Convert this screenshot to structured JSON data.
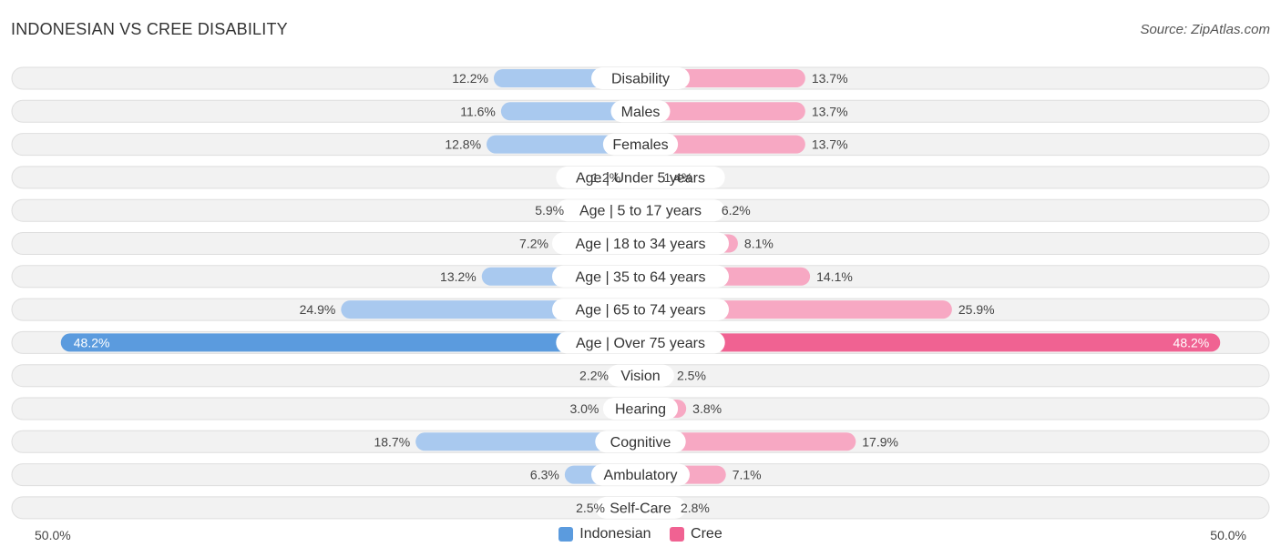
{
  "title": "INDONESIAN VS CREE DISABILITY",
  "source": "Source: ZipAtlas.com",
  "axis": {
    "left_label": "50.0%",
    "right_label": "50.0%"
  },
  "colors": {
    "indonesian": "#5b9bde",
    "indonesian_light": "#a9c9ef",
    "cree": "#f06292",
    "cree_light": "#f7a8c3"
  },
  "chart_data": {
    "type": "bar",
    "orientation": "horizontal-diverging",
    "xlim": [
      -50,
      50
    ],
    "categories": [
      "Disability",
      "Males",
      "Females",
      "Age | Under 5 years",
      "Age | 5 to 17 years",
      "Age | 18 to 34 years",
      "Age | 35 to 64 years",
      "Age | 65 to 74 years",
      "Age | Over 75 years",
      "Vision",
      "Hearing",
      "Cognitive",
      "Ambulatory",
      "Self-Care"
    ],
    "series": [
      {
        "name": "Indonesian",
        "values": [
          12.2,
          11.6,
          12.8,
          1.2,
          5.9,
          7.2,
          13.2,
          24.9,
          48.2,
          2.2,
          3.0,
          18.7,
          6.3,
          2.5
        ],
        "labels": [
          "12.2%",
          "11.6%",
          "12.8%",
          "1.2%",
          "5.9%",
          "7.2%",
          "13.2%",
          "24.9%",
          "48.2%",
          "2.2%",
          "3.0%",
          "18.7%",
          "6.3%",
          "2.5%"
        ]
      },
      {
        "name": "Cree",
        "values": [
          13.7,
          13.7,
          13.7,
          1.4,
          6.2,
          8.1,
          14.1,
          25.9,
          48.2,
          2.5,
          3.8,
          17.9,
          7.1,
          2.8
        ],
        "labels": [
          "13.7%",
          "13.7%",
          "13.7%",
          "1.4%",
          "6.2%",
          "8.1%",
          "14.1%",
          "25.9%",
          "48.2%",
          "2.5%",
          "3.8%",
          "17.9%",
          "7.1%",
          "2.8%"
        ]
      }
    ],
    "legend_position": "bottom-center"
  }
}
